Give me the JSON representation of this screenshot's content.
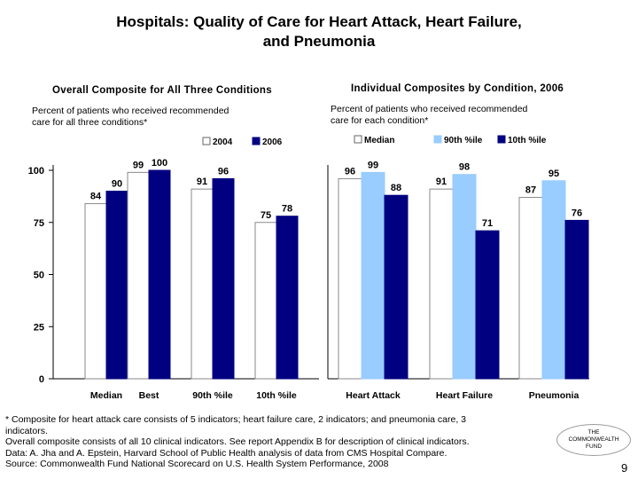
{
  "title_line1": "Hospitals: Quality of Care for Heart Attack, Heart Failure,",
  "title_line2": "and Pneumonia",
  "left_heading": "Overall Composite for All Three Conditions",
  "left_subtitle_line1": "Percent of patients who received recommended",
  "left_subtitle_line2": "care for all three conditions*",
  "right_heading": "Individual Composites by Condition, 2006",
  "right_subtitle_line1": "Percent of patients who received recommended",
  "right_subtitle_line2": "care for each condition*",
  "chart_data": [
    {
      "type": "bar",
      "categories": [
        "Median",
        "Best",
        "90th %ile",
        "10th %ile"
      ],
      "series": [
        {
          "name": "2004",
          "values": [
            84,
            99,
            91,
            75
          ],
          "color": "#ffffff"
        },
        {
          "name": "2006",
          "values": [
            90,
            100,
            96,
            78
          ],
          "color": "#000080"
        }
      ],
      "yticks": [
        "0",
        "25",
        "50",
        "75",
        "100"
      ],
      "ylim": [
        0,
        100
      ],
      "legend": "top"
    },
    {
      "type": "bar",
      "categories": [
        "Heart Attack",
        "Heart Failure",
        "Pneumonia"
      ],
      "series": [
        {
          "name": "Median",
          "values": [
            96,
            91,
            87
          ],
          "color": "#ffffff"
        },
        {
          "name": "90th %ile",
          "values": [
            99,
            98,
            95
          ],
          "color": "#99ccff"
        },
        {
          "name": "10th %ile",
          "values": [
            88,
            71,
            76
          ],
          "color": "#000080"
        }
      ],
      "ylim": [
        0,
        100
      ],
      "legend": "top"
    }
  ],
  "footnote_lines": [
    "* Composite for heart attack care consists of 5 indicators; heart failure care, 2 indicators; and pneumonia care, 3",
    "indicators.",
    "Overall composite consists of all 10 clinical indicators. See report Appendix B for description of clinical indicators.",
    "Data: A. Jha and A. Epstein, Harvard School of Public Health analysis of data from CMS Hospital Compare.",
    "Source: Commonwealth Fund National Scorecard on U.S. Health System Performance, 2008"
  ],
  "logo_line1": "THE",
  "logo_line2": "COMMONWEALTH",
  "logo_line3": "FUND",
  "page_number": "9"
}
